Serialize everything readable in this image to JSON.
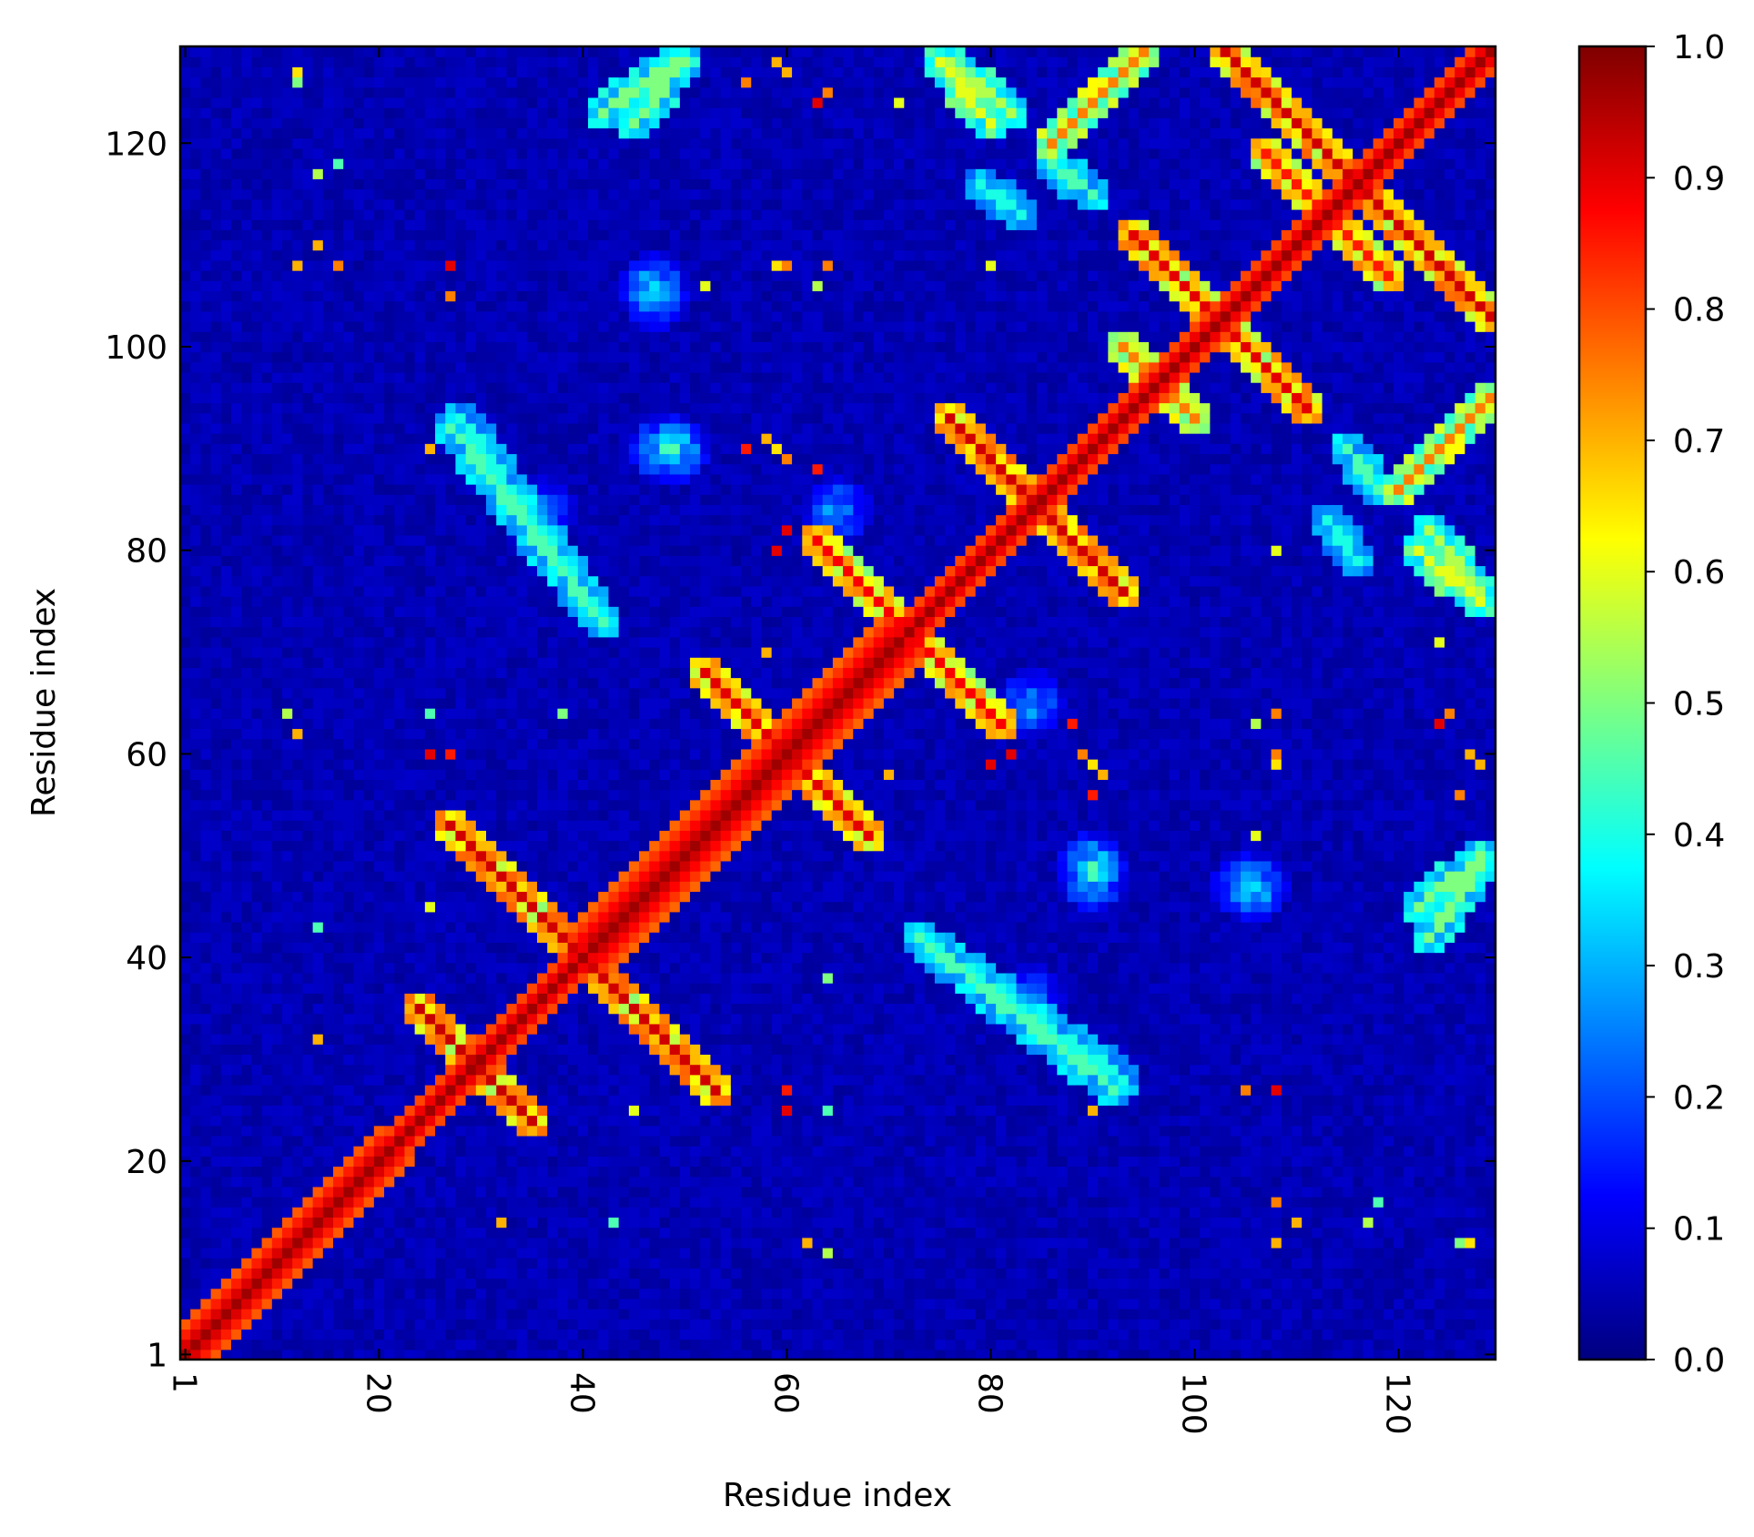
{
  "chart_data": {
    "type": "heatmap",
    "title": "",
    "xlabel": "Residue index",
    "ylabel": "Residue index",
    "x_range": [
      1,
      129
    ],
    "y_range": [
      1,
      129
    ],
    "n_residues": 129,
    "x_ticks": [
      1,
      20,
      40,
      60,
      80,
      100,
      120
    ],
    "x_tick_labels": [
      "1",
      "20",
      "40",
      "60",
      "80",
      "100",
      "120"
    ],
    "y_ticks": [
      1,
      20,
      40,
      60,
      80,
      100,
      120
    ],
    "y_tick_labels": [
      "1",
      "20",
      "40",
      "60",
      "80",
      "100",
      "120"
    ],
    "colorbar": {
      "range": [
        0.0,
        1.0
      ],
      "ticks": [
        0.0,
        0.1,
        0.2,
        0.3,
        0.4,
        0.5,
        0.6,
        0.7,
        0.8,
        0.9,
        1.0
      ],
      "tick_labels": [
        "0.0",
        "0.1",
        "0.2",
        "0.3",
        "0.4",
        "0.5",
        "0.6",
        "0.7",
        "0.8",
        "0.9",
        "1.0"
      ],
      "colormap": "jet",
      "colormap_stops": [
        "#00007f",
        "#0000ff",
        "#007fff",
        "#00ffff",
        "#7fff7f",
        "#ffff00",
        "#ff7f00",
        "#ff0000",
        "#7f0000"
      ]
    },
    "background_value": 0.05,
    "diagonal": {
      "value": 0.97,
      "half_width_min": 1,
      "half_width_max": 5
    },
    "contact_bands": [
      {
        "from": [
          3,
          3
        ],
        "to": [
          16,
          16
        ],
        "value": 0.95,
        "kind": "parallel"
      },
      {
        "from": [
          14,
          14
        ],
        "to": [
          24,
          24
        ],
        "value": 0.55,
        "kind": "parallel"
      },
      {
        "from": [
          24,
          35
        ],
        "to": [
          35,
          24
        ],
        "value": 0.93,
        "kind": "antiparallel"
      },
      {
        "from": [
          27,
          53
        ],
        "to": [
          53,
          27
        ],
        "value": 0.92,
        "kind": "antiparallel"
      },
      {
        "from": [
          52,
          68
        ],
        "to": [
          68,
          52
        ],
        "value": 0.9,
        "kind": "parallel"
      },
      {
        "from": [
          63,
          81
        ],
        "to": [
          81,
          63
        ],
        "value": 0.88,
        "kind": "antiparallel"
      },
      {
        "from": [
          76,
          93
        ],
        "to": [
          93,
          76
        ],
        "value": 0.92,
        "kind": "antiparallel"
      },
      {
        "from": [
          94,
          111
        ],
        "to": [
          111,
          94
        ],
        "value": 0.9,
        "kind": "antiparallel"
      },
      {
        "from": [
          93,
          100
        ],
        "to": [
          100,
          93
        ],
        "value": 0.75,
        "kind": "antiparallel"
      },
      {
        "from": [
          103,
          129
        ],
        "to": [
          129,
          103
        ],
        "value": 0.92,
        "kind": "antiparallel"
      },
      {
        "from": [
          107,
          119
        ],
        "to": [
          119,
          107
        ],
        "value": 0.85,
        "kind": "antiparallel"
      },
      {
        "from": [
          120,
          86
        ],
        "to": [
          129,
          95
        ],
        "value": 0.75,
        "kind": "antiparallel"
      },
      {
        "from": [
          45,
          122
        ],
        "to": [
          50,
          128
        ],
        "value": 0.5,
        "kind": "parallel"
      },
      {
        "from": [
          76,
          128
        ],
        "to": [
          82,
          123
        ],
        "value": 0.55,
        "kind": "antiparallel"
      },
      {
        "from": [
          27,
          92
        ],
        "to": [
          42,
          73
        ],
        "value": 0.45,
        "kind": "antiparallel"
      },
      {
        "from": [
          73,
          42
        ],
        "to": [
          93,
          28
        ],
        "value": 0.4,
        "kind": "antiparallel"
      },
      {
        "from": [
          90,
          115
        ],
        "to": [
          86,
          118
        ],
        "value": 0.45,
        "kind": "antiparallel"
      },
      {
        "from": [
          123,
          42
        ],
        "to": [
          128,
          49
        ],
        "value": 0.5,
        "kind": "parallel"
      },
      {
        "from": [
          122,
          80
        ],
        "to": [
          128,
          75
        ],
        "value": 0.6,
        "kind": "antiparallel"
      },
      {
        "from": [
          113,
          83
        ],
        "to": [
          116,
          79
        ],
        "value": 0.4,
        "kind": "antiparallel"
      }
    ],
    "contact_blobs": [
      {
        "x": 47,
        "y": 105,
        "value": 0.4
      },
      {
        "x": 49,
        "y": 90,
        "value": 0.45
      },
      {
        "x": 90,
        "y": 48,
        "value": 0.45
      },
      {
        "x": 106,
        "y": 47,
        "value": 0.4
      },
      {
        "x": 84,
        "y": 36,
        "value": 0.3
      },
      {
        "x": 65,
        "y": 84,
        "value": 0.35
      }
    ],
    "scattered_contacts": [
      {
        "x": 11,
        "y": 64,
        "value": 0.55
      },
      {
        "x": 12,
        "y": 126,
        "value": 0.5
      },
      {
        "x": 12,
        "y": 108,
        "value": 0.7
      },
      {
        "x": 16,
        "y": 118,
        "value": 0.45
      },
      {
        "x": 16,
        "y": 108,
        "value": 0.75
      },
      {
        "x": 25,
        "y": 90,
        "value": 0.7
      },
      {
        "x": 25,
        "y": 64,
        "value": 0.45
      },
      {
        "x": 25,
        "y": 60,
        "value": 0.9
      },
      {
        "x": 27,
        "y": 105,
        "value": 0.75
      },
      {
        "x": 32,
        "y": 14,
        "value": 0.7
      },
      {
        "x": 45,
        "y": 25,
        "value": 0.6
      },
      {
        "x": 52,
        "y": 106,
        "value": 0.6
      },
      {
        "x": 56,
        "y": 126,
        "value": 0.75
      },
      {
        "x": 56,
        "y": 90,
        "value": 0.85
      },
      {
        "x": 59,
        "y": 128,
        "value": 0.7
      },
      {
        "x": 59,
        "y": 108,
        "value": 0.65
      },
      {
        "x": 59,
        "y": 90,
        "value": 0.65
      },
      {
        "x": 59,
        "y": 80,
        "value": 0.9
      },
      {
        "x": 60,
        "y": 27,
        "value": 0.85
      },
      {
        "x": 62,
        "y": 12,
        "value": 0.7
      },
      {
        "x": 63,
        "y": 124,
        "value": 0.9
      },
      {
        "x": 63,
        "y": 106,
        "value": 0.55
      },
      {
        "x": 63,
        "y": 88,
        "value": 0.85
      },
      {
        "x": 71,
        "y": 124,
        "value": 0.6
      },
      {
        "x": 80,
        "y": 108,
        "value": 0.6
      },
      {
        "x": 82,
        "y": 60,
        "value": 0.9
      },
      {
        "x": 89,
        "y": 60,
        "value": 0.75
      },
      {
        "x": 91,
        "y": 58,
        "value": 0.7
      },
      {
        "x": 108,
        "y": 64,
        "value": 0.75
      },
      {
        "x": 108,
        "y": 60,
        "value": 0.75
      },
      {
        "x": 108,
        "y": 27,
        "value": 0.9
      },
      {
        "x": 108,
        "y": 12,
        "value": 0.65
      },
      {
        "x": 110,
        "y": 14,
        "value": 0.7
      },
      {
        "x": 116,
        "y": 108,
        "value": 0.75
      },
      {
        "x": 117,
        "y": 14,
        "value": 0.55
      },
      {
        "x": 125,
        "y": 64,
        "value": 0.75
      },
      {
        "x": 127,
        "y": 60,
        "value": 0.7
      },
      {
        "x": 127,
        "y": 12,
        "value": 0.65
      },
      {
        "x": 38,
        "y": 64,
        "value": 0.5
      },
      {
        "x": 43,
        "y": 14,
        "value": 0.45
      },
      {
        "x": 69,
        "y": 70,
        "value": 0.7
      },
      {
        "x": 70,
        "y": 58,
        "value": 0.7
      }
    ]
  }
}
